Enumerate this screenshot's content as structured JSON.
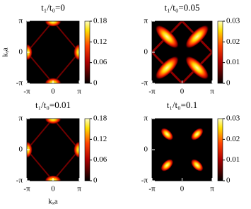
{
  "chart_data": [
    {
      "type": "heatmap",
      "title": "t₁/t₀=0",
      "ylabel": "kᵧa",
      "xlim": [
        -3.14159,
        3.14159
      ],
      "ylim": [
        -3.14159,
        3.14159
      ],
      "xticks": [
        {
          "value": -3.14159,
          "label": "-π"
        },
        0,
        {
          "value": 3.14159,
          "label": "π"
        }
      ],
      "yticks": [
        {
          "value": -3.14159,
          "label": "-π"
        },
        0,
        {
          "value": 3.14159,
          "label": "π"
        }
      ],
      "zlim": [
        0,
        0.18
      ],
      "zticks": [
        0,
        0.06,
        0.12,
        0.18
      ]
    },
    {
      "type": "heatmap",
      "title": "t₁/t₀=0.05",
      "xlim": [
        -3.14159,
        3.14159
      ],
      "ylim": [
        -3.14159,
        3.14159
      ],
      "xticks": [
        {
          "value": -3.14159,
          "label": "-π"
        },
        0,
        {
          "value": 3.14159,
          "label": "π"
        }
      ],
      "yticks": [
        {
          "value": -3.14159,
          "label": "-π"
        },
        0,
        {
          "value": 3.14159,
          "label": "π"
        }
      ],
      "zlim": [
        0,
        0.03
      ],
      "zticks": [
        0,
        0.01,
        0.02,
        0.03
      ]
    },
    {
      "type": "heatmap",
      "title": "t₁/t₀=0.01",
      "xlabel": "kₓa",
      "xlim": [
        -3.14159,
        3.14159
      ],
      "ylim": [
        -3.14159,
        3.14159
      ],
      "xticks": [
        {
          "value": -3.14159,
          "label": "-π"
        },
        0,
        {
          "value": 3.14159,
          "label": "π"
        }
      ],
      "yticks": [
        {
          "value": -3.14159,
          "label": "-π"
        },
        0,
        {
          "value": 3.14159,
          "label": "π"
        }
      ],
      "zlim": [
        0,
        0.18
      ],
      "zticks": [
        0,
        0.06,
        0.12,
        0.18
      ]
    },
    {
      "type": "heatmap",
      "title": "t₁/t₀=0.1",
      "xlim": [
        -3.14159,
        3.14159
      ],
      "ylim": [
        -3.14159,
        3.14159
      ],
      "xticks": [
        {
          "value": -3.14159,
          "label": "-π"
        },
        0,
        {
          "value": 3.14159,
          "label": "π"
        }
      ],
      "yticks": [
        {
          "value": -3.14159,
          "label": "-π"
        },
        0,
        {
          "value": 3.14159,
          "label": "π"
        }
      ],
      "zlim": [
        0,
        0.03
      ],
      "zticks": [
        0,
        0.01,
        0.02,
        0.03
      ]
    }
  ]
}
